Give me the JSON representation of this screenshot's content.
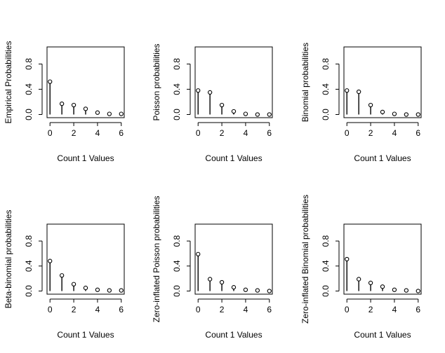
{
  "chart_data": [
    {
      "type": "lollipop",
      "xlabel": "Count 1 Values",
      "ylabel": "Empirical Probabilities",
      "x": [
        0,
        1,
        2,
        3,
        4,
        5,
        6
      ],
      "y": [
        0.52,
        0.17,
        0.15,
        0.09,
        0.03,
        0.01,
        0.01
      ],
      "xticks": [
        "0",
        "2",
        "4",
        "6"
      ],
      "yticks": [
        "0.0",
        "0.4",
        "0.8"
      ],
      "ylim": [
        0,
        1
      ]
    },
    {
      "type": "lollipop",
      "xlabel": "Count 1 Values",
      "ylabel": "Poisson probabilities",
      "x": [
        0,
        1,
        2,
        3,
        4,
        5,
        6
      ],
      "y": [
        0.38,
        0.35,
        0.15,
        0.05,
        0.01,
        0.0,
        0.0
      ],
      "xticks": [
        "0",
        "2",
        "4",
        "6"
      ],
      "yticks": [
        "0.0",
        "0.4",
        "0.8"
      ],
      "ylim": [
        0,
        1
      ]
    },
    {
      "type": "lollipop",
      "xlabel": "Count 1 Values",
      "ylabel": "Binomial probabilities",
      "x": [
        0,
        1,
        2,
        3,
        4,
        5,
        6
      ],
      "y": [
        0.38,
        0.36,
        0.15,
        0.04,
        0.01,
        0.0,
        0.0
      ],
      "xticks": [
        "0",
        "2",
        "4",
        "6"
      ],
      "yticks": [
        "0.0",
        "0.4",
        "0.8"
      ],
      "ylim": [
        0,
        1
      ]
    },
    {
      "type": "lollipop",
      "xlabel": "Count 1 Values",
      "ylabel": "Beta-binomial probabilities",
      "x": [
        0,
        1,
        2,
        3,
        4,
        5,
        6
      ],
      "y": [
        0.48,
        0.25,
        0.11,
        0.05,
        0.02,
        0.01,
        0.01
      ],
      "xticks": [
        "0",
        "2",
        "4",
        "6"
      ],
      "yticks": [
        "0.0",
        "0.4",
        "0.8"
      ],
      "ylim": [
        0,
        1
      ]
    },
    {
      "type": "lollipop",
      "xlabel": "Count 1 Values",
      "ylabel": "Zero-inflated Poisson probabilities",
      "x": [
        0,
        1,
        2,
        3,
        4,
        5,
        6
      ],
      "y": [
        0.59,
        0.19,
        0.14,
        0.06,
        0.02,
        0.01,
        0.0
      ],
      "xticks": [
        "0",
        "2",
        "4",
        "6"
      ],
      "yticks": [
        "0.0",
        "0.4",
        "0.8"
      ],
      "ylim": [
        0,
        1
      ]
    },
    {
      "type": "lollipop",
      "xlabel": "Count 1 Values",
      "ylabel": "Zero-inflated Binomial probabilities",
      "x": [
        0,
        1,
        2,
        3,
        4,
        5,
        6
      ],
      "y": [
        0.51,
        0.19,
        0.13,
        0.07,
        0.02,
        0.01,
        0.0
      ],
      "xticks": [
        "0",
        "2",
        "4",
        "6"
      ],
      "yticks": [
        "0.0",
        "0.4",
        "0.8"
      ],
      "ylim": [
        0,
        1
      ]
    }
  ]
}
